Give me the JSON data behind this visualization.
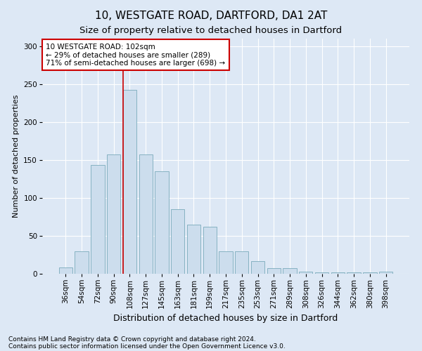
{
  "title1": "10, WESTGATE ROAD, DARTFORD, DA1 2AT",
  "title2": "Size of property relative to detached houses in Dartford",
  "xlabel": "Distribution of detached houses by size in Dartford",
  "ylabel": "Number of detached properties",
  "categories": [
    "36sqm",
    "54sqm",
    "72sqm",
    "90sqm",
    "108sqm",
    "127sqm",
    "145sqm",
    "163sqm",
    "181sqm",
    "199sqm",
    "217sqm",
    "235sqm",
    "253sqm",
    "271sqm",
    "289sqm",
    "308sqm",
    "326sqm",
    "344sqm",
    "362sqm",
    "380sqm",
    "398sqm"
  ],
  "values": [
    8,
    30,
    143,
    157,
    242,
    157,
    135,
    85,
    65,
    62,
    30,
    30,
    17,
    7,
    7,
    3,
    2,
    2,
    2,
    2,
    3
  ],
  "bar_color": "#ccdded",
  "bar_edgecolor": "#7aaabb",
  "bg_color": "#dde8f5",
  "grid_color": "#ffffff",
  "vline_color": "#cc0000",
  "vline_x_index": 3.575,
  "annotation_text": "10 WESTGATE ROAD: 102sqm\n← 29% of detached houses are smaller (289)\n71% of semi-detached houses are larger (698) →",
  "annotation_box_facecolor": "#ffffff",
  "annotation_box_edgecolor": "#cc0000",
  "footer1": "Contains HM Land Registry data © Crown copyright and database right 2024.",
  "footer2": "Contains public sector information licensed under the Open Government Licence v3.0.",
  "ylim": [
    0,
    310
  ],
  "title1_fontsize": 11,
  "title2_fontsize": 9.5,
  "xlabel_fontsize": 9,
  "ylabel_fontsize": 8,
  "tick_fontsize": 7.5,
  "annotation_fontsize": 7.5,
  "footer_fontsize": 6.5
}
